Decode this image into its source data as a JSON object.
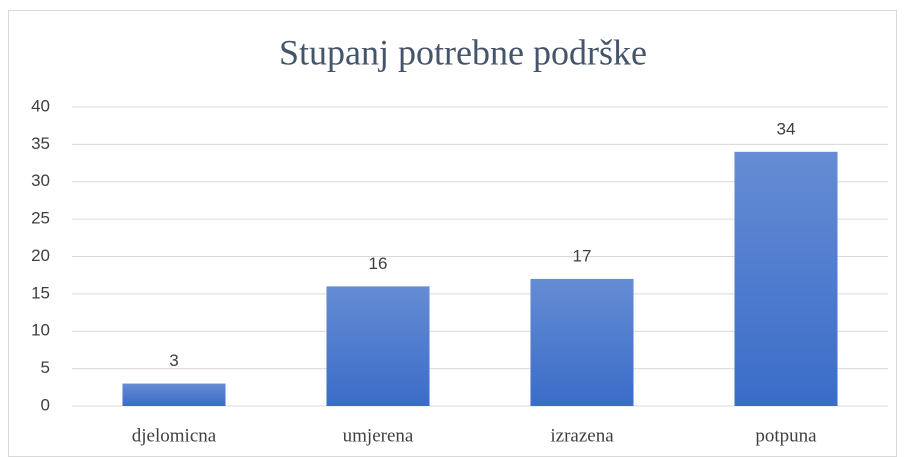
{
  "chart_data": {
    "type": "bar",
    "title": "Stupanj potrebne podrške",
    "categories": [
      "djelomicna",
      "umjerena",
      "izrazena",
      "potpuna"
    ],
    "values": [
      3,
      16,
      17,
      34
    ],
    "color": "#3a6cc8",
    "ylim": [
      0,
      40
    ],
    "yticks": [
      0,
      5,
      10,
      15,
      20,
      25,
      30,
      35,
      40
    ],
    "grid": true
  }
}
